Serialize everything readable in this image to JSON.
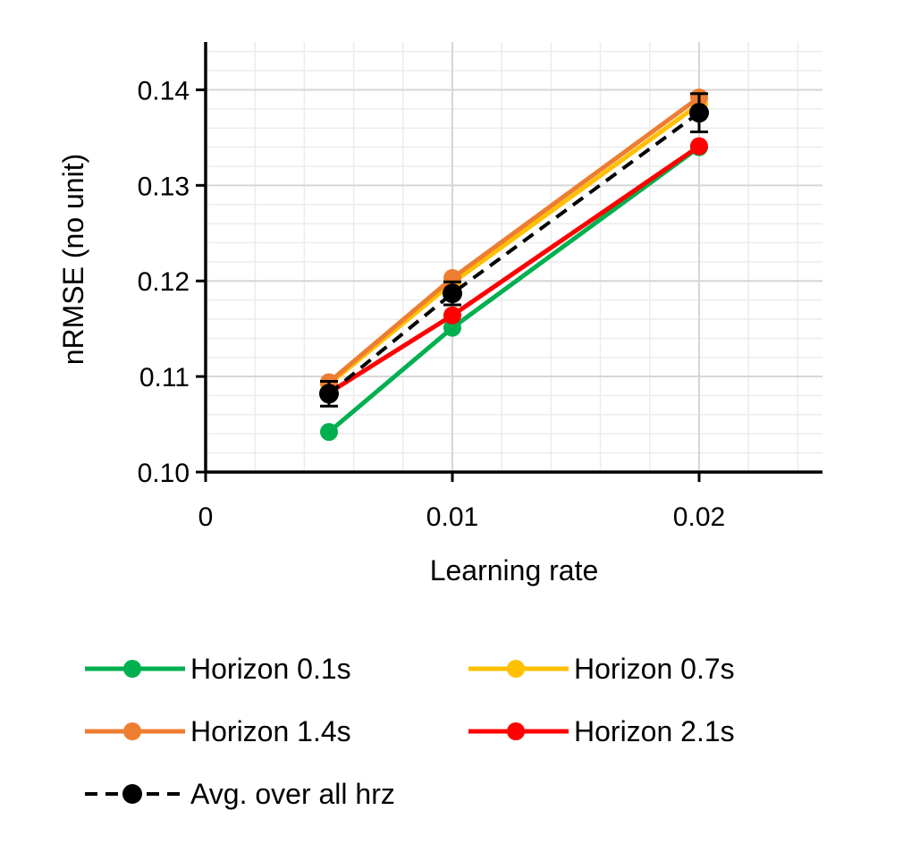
{
  "chart_data": {
    "type": "line",
    "title": "",
    "xlabel": "Learning rate",
    "ylabel": "nRMSE (no unit)",
    "xlim": [
      0,
      0.025
    ],
    "ylim": [
      0.1,
      0.145
    ],
    "grid": true,
    "x_ticks": [
      0,
      0.01,
      0.02
    ],
    "x_tick_labels": [
      "0",
      "0.01",
      "0.02"
    ],
    "y_ticks": [
      0.1,
      0.11,
      0.12,
      0.13,
      0.14
    ],
    "y_tick_labels": [
      "0.10",
      "0.11",
      "0.12",
      "0.13",
      "0.14"
    ],
    "x": [
      0.005,
      0.01,
      0.02
    ],
    "series": [
      {
        "name": "Horizon 0.1s",
        "color": "#00b050",
        "dashed": false,
        "values": [
          0.1042,
          0.1151,
          0.134
        ]
      },
      {
        "name": "Horizon 0.7s",
        "color": "#ffc000",
        "dashed": false,
        "values": [
          0.1092,
          0.1198,
          0.1385
        ]
      },
      {
        "name": "Horizon 1.4s",
        "color": "#ed7d31",
        "dashed": false,
        "values": [
          0.1094,
          0.1203,
          0.1392
        ]
      },
      {
        "name": "Horizon 2.1s",
        "color": "#ff0000",
        "dashed": false,
        "values": [
          0.1083,
          0.1164,
          0.1341
        ]
      },
      {
        "name": "Avg. over all hrz",
        "color": "#000000",
        "dashed": true,
        "values": [
          0.1082,
          0.1187,
          0.1376
        ],
        "error": [
          0.0013,
          0.0012,
          0.002
        ]
      }
    ],
    "legend_location": "bottom"
  }
}
